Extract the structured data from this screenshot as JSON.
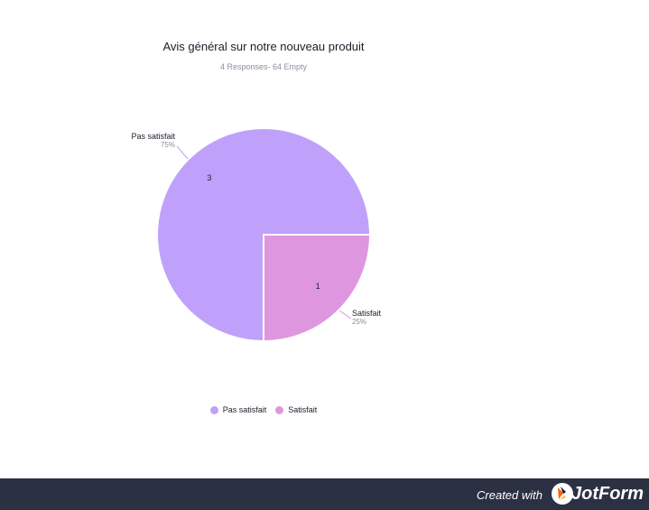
{
  "chart_data": {
    "type": "pie",
    "title": "Avis général sur notre nouveau produit",
    "subtitle": "4 Responses- 64 Empty",
    "slices": [
      {
        "label": "Pas satisfait",
        "value": 3,
        "percent_label": "75%",
        "color": "#bfa1fc"
      },
      {
        "label": "Satisfait",
        "value": 1,
        "percent_label": "25%",
        "color": "#de97de"
      }
    ],
    "legend_position": "bottom"
  },
  "legend": {
    "items": [
      {
        "label": "Pas satisfait",
        "color": "#bfa1fc"
      },
      {
        "label": "Satisfait",
        "color": "#de97de"
      }
    ]
  },
  "footer": {
    "created_with": "Created with",
    "brand": "JotForm",
    "background": "#2b3043"
  }
}
